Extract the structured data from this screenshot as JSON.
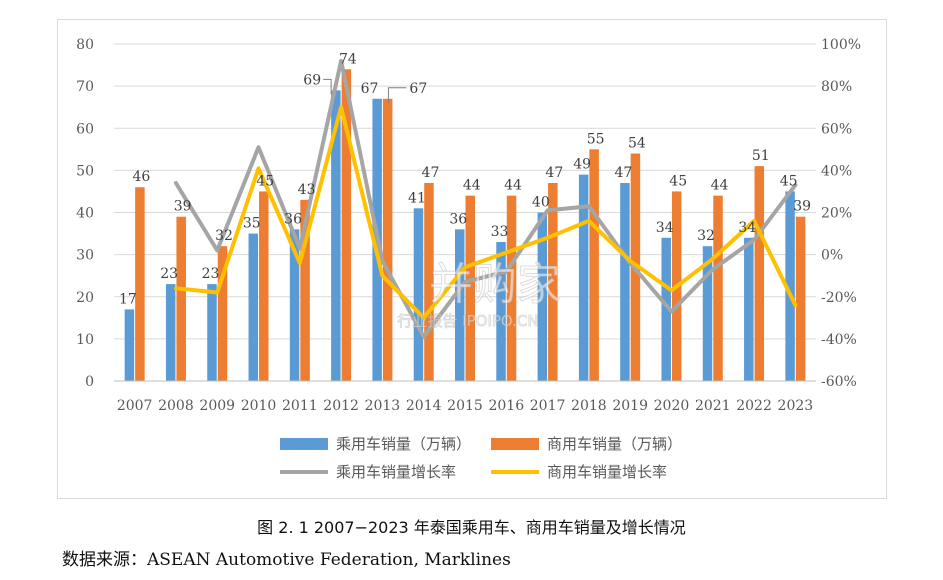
{
  "caption": "图 2. 1 2007−2023 年泰国乘用车、商用车销量及增长情况",
  "source": "数据来源：ASEAN Automotive Federation, Marklines",
  "watermark": {
    "main": "并购家",
    "sub": "行业报告 IPOIPO.CN"
  },
  "colors": {
    "passenger": "#5b9bd5",
    "commercial": "#ed7d31",
    "passenger_growth": "#a5a5a5",
    "commercial_growth": "#ffc000"
  },
  "chart_data": {
    "type": "bar",
    "categories": [
      "2007",
      "2008",
      "2009",
      "2010",
      "2011",
      "2012",
      "2013",
      "2014",
      "2015",
      "2016",
      "2017",
      "2018",
      "2019",
      "2020",
      "2021",
      "2022",
      "2023"
    ],
    "series": [
      {
        "name": "乘用车销量（万辆）",
        "type": "bar",
        "axis": "left",
        "values": [
          17,
          23,
          23,
          35,
          36,
          69,
          67,
          41,
          36,
          33,
          40,
          49,
          47,
          34,
          32,
          34,
          45
        ]
      },
      {
        "name": "商用车销量（万辆）",
        "type": "bar",
        "axis": "left",
        "values": [
          46,
          39,
          32,
          45,
          43,
          74,
          67,
          47,
          44,
          44,
          47,
          55,
          54,
          45,
          44,
          51,
          39
        ]
      },
      {
        "name": "乘用车销量增长率",
        "type": "line",
        "axis": "right",
        "values": [
          null,
          34,
          2,
          51,
          3,
          92,
          -3,
          -39,
          -13,
          -8,
          21,
          23,
          -4,
          -27,
          -7,
          7,
          33
        ]
      },
      {
        "name": "商用车销量增长率",
        "type": "line",
        "axis": "right",
        "values": [
          null,
          -16,
          -18,
          41,
          -4,
          70,
          -10,
          -30,
          -6,
          1,
          8,
          16,
          -3,
          -17,
          -2,
          16,
          -24
        ]
      }
    ],
    "ylim_left": [
      0,
      80
    ],
    "yticks_left": [
      "0",
      "10",
      "20",
      "30",
      "40",
      "50",
      "60",
      "70",
      "80"
    ],
    "ylim_right": [
      -60,
      100
    ],
    "yticks_right": [
      "-60%",
      "-40%",
      "-20%",
      "0%",
      "20%",
      "40%",
      "60%",
      "80%",
      "100%"
    ],
    "grid": true,
    "legend_position": "bottom"
  }
}
